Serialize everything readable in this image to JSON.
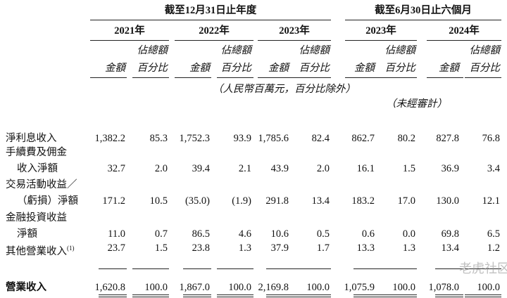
{
  "header": {
    "groups": [
      "截至12月31日止年度",
      "截至6月30日止六個月"
    ],
    "columns": [
      {
        "year": "2021年",
        "amount": "金額",
        "pct": [
          "佔總額",
          "百分比"
        ]
      },
      {
        "year": "2022年",
        "amount": "金額",
        "pct": [
          "佔總額",
          "百分比"
        ]
      },
      {
        "year": "2023年",
        "amount": "金額",
        "pct": [
          "佔總額",
          "百分比"
        ]
      },
      {
        "year": "2023年",
        "amount": "金額",
        "pct": [
          "佔總額",
          "百分比"
        ]
      },
      {
        "year": "2024年",
        "amount": "金額",
        "pct": [
          "佔總額",
          "百分比"
        ]
      }
    ],
    "unit_note": "（人民幣百萬元，百分比除外）",
    "audit_note": "（未經審計）"
  },
  "table": {
    "rows": [
      {
        "label": [
          "淨利息收入"
        ],
        "values": [
          "1,382.2",
          "85.3",
          "1,752.3",
          "93.9",
          "1,785.6",
          "82.4",
          "862.7",
          "80.2",
          "827.8",
          "76.8"
        ]
      },
      {
        "label": [
          "手續費及佣金",
          "收入淨額"
        ],
        "values": [
          "32.7",
          "2.0",
          "39.4",
          "2.1",
          "43.9",
          "2.0",
          "16.1",
          "1.5",
          "36.9",
          "3.4"
        ]
      },
      {
        "label": [
          "交易活動收益／",
          "（虧損）淨額"
        ],
        "values": [
          "171.2",
          "10.5",
          "(35.0)",
          "(1.9)",
          "291.8",
          "13.4",
          "183.2",
          "17.0",
          "130.0",
          "12.1"
        ]
      },
      {
        "label": [
          "金融投資收益",
          "淨額"
        ],
        "values": [
          "11.0",
          "0.7",
          "86.5",
          "4.6",
          "10.6",
          "0.5",
          "0.6",
          "0.0",
          "69.8",
          "6.5"
        ]
      },
      {
        "label": [
          "其他營業收入"
        ],
        "footnote": "(1)",
        "values": [
          "23.7",
          "1.5",
          "23.8",
          "1.3",
          "37.9",
          "1.7",
          "13.3",
          "1.3",
          "13.4",
          "1.2"
        ]
      },
      {
        "label": [
          "營業收入"
        ],
        "values": [
          "1,620.8",
          "100.0",
          "1,867.0",
          "100.0",
          "2,169.8",
          "100.0",
          "1,075.9",
          "100.0",
          "1,078.0",
          "100.0"
        ]
      }
    ]
  },
  "watermark": "老虎社区"
}
